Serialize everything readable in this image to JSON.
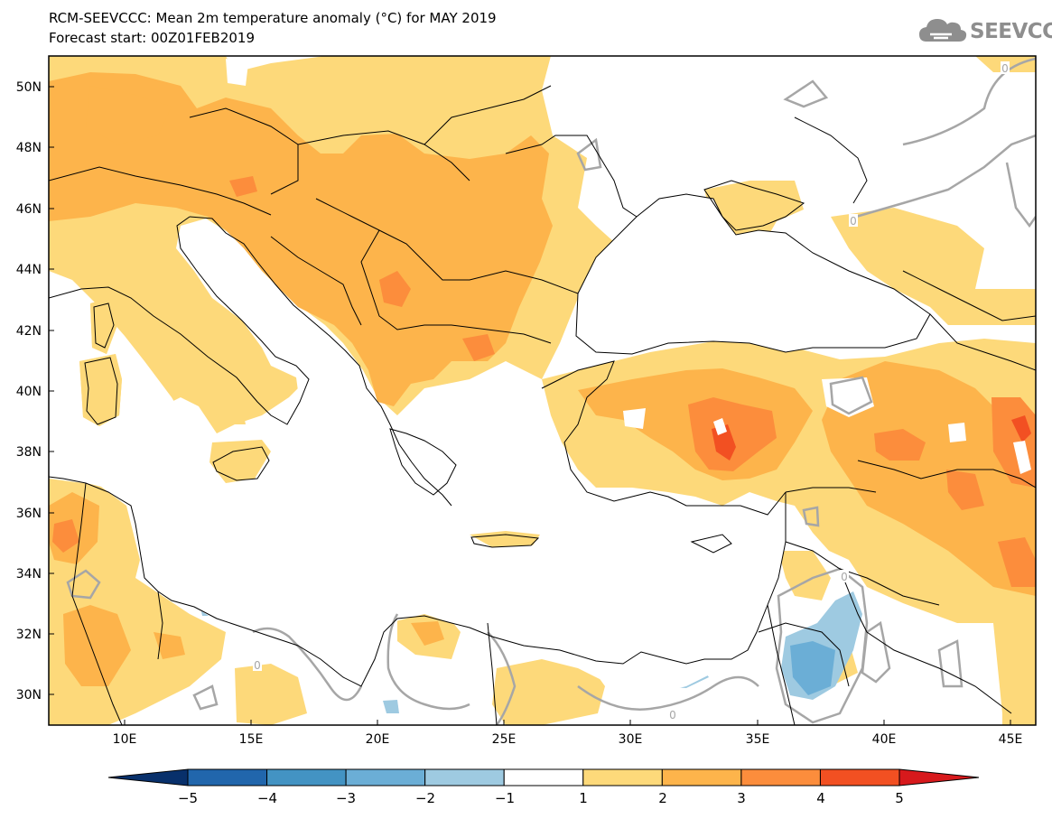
{
  "title": {
    "line1": "RCM-SEEVCCC: Mean 2m temperature anomaly (°C) for MAY 2019",
    "line2": "Forecast start: 00Z01FEB2019"
  },
  "logo": {
    "text": "SEEVCCC",
    "icon": "cloud-icon"
  },
  "map": {
    "lon_range": [
      7,
      46
    ],
    "lat_range": [
      29,
      51
    ],
    "lat_labels": [
      "30N",
      "32N",
      "34N",
      "36N",
      "38N",
      "40N",
      "42N",
      "44N",
      "46N",
      "48N",
      "50N"
    ],
    "lon_labels": [
      "10E",
      "15E",
      "20E",
      "25E",
      "30E",
      "35E",
      "40E",
      "45E"
    ],
    "contour_label": "0",
    "sea_color": "#ffffff",
    "border_color": "#000000",
    "zero_contour_color": "#a6a6a6"
  },
  "colorbar": {
    "ticks": [
      "−5",
      "−4",
      "−3",
      "−2",
      "−1",
      "1",
      "2",
      "3",
      "4",
      "5"
    ],
    "colors": [
      "#08306b",
      "#2166ac",
      "#4393c3",
      "#6baed6",
      "#9ecae1",
      "#ffffff",
      "#fdd97a",
      "#fdb44b",
      "#fc8d3c",
      "#f25022",
      "#d7191c"
    ]
  }
}
